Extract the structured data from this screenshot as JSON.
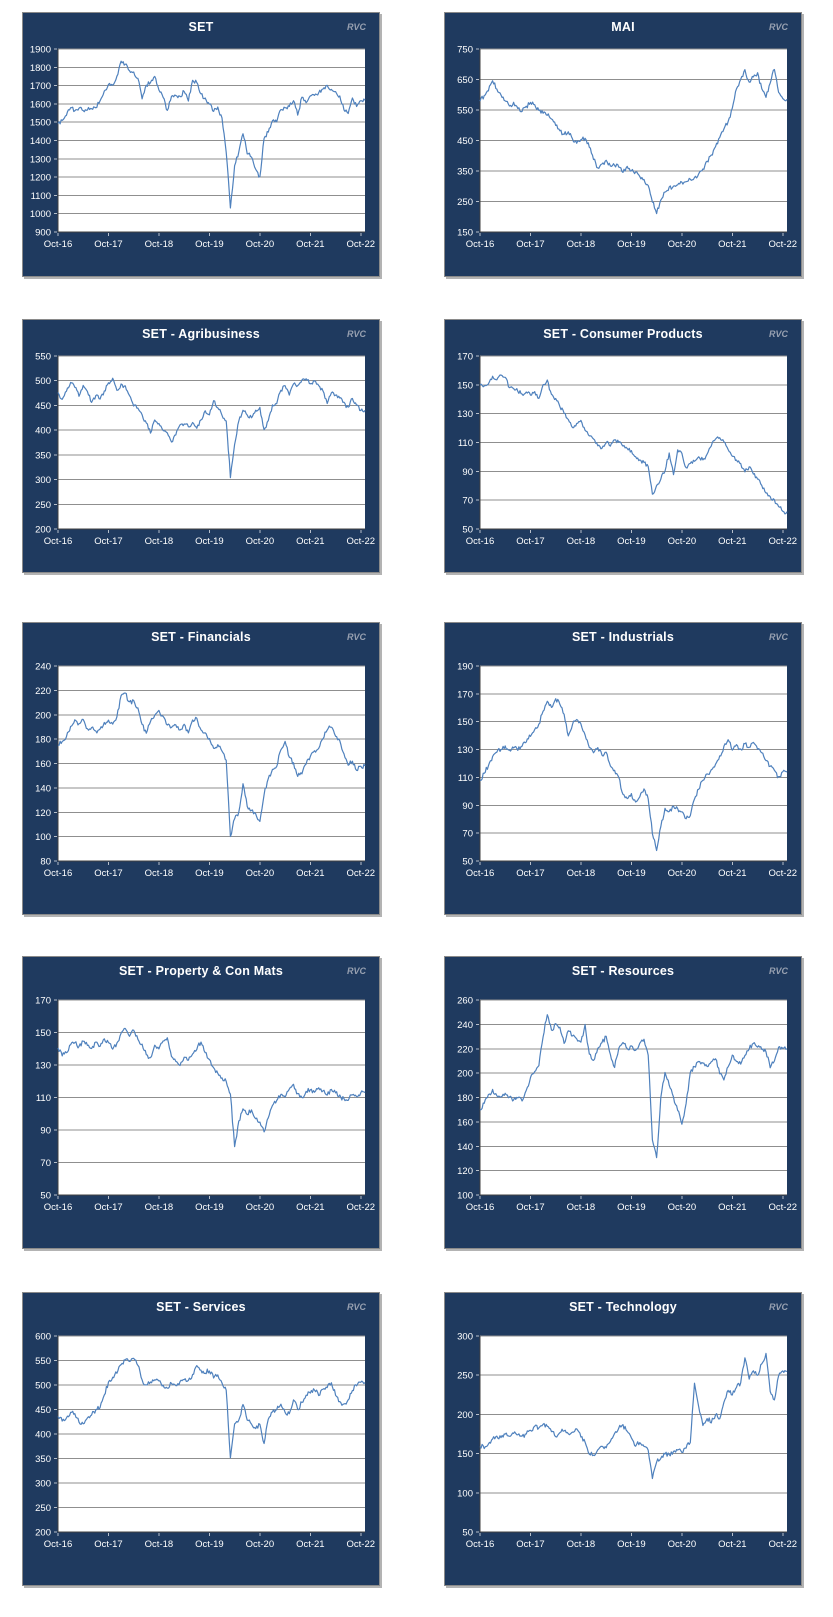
{
  "watermark": "RVC",
  "x_tick_labels": [
    "Oct-16",
    "Oct-17",
    "Oct-18",
    "Oct-19",
    "Oct-20",
    "Oct-21",
    "Oct-22"
  ],
  "colors": {
    "panel_bg": "#1f3a5f",
    "plot_bg": "#ffffff",
    "line": "#4f81bd",
    "grid": "#8f8f8f",
    "axis": "#404040",
    "tick": "#b7bfca",
    "text": "#ffffff",
    "watermark": "#97a0b0"
  },
  "chart_data": [
    {
      "type": "line",
      "title": "SET",
      "frequency": "monthly",
      "x_start": "Oct-16",
      "x_end": "Oct-22",
      "ylim": [
        900,
        1900
      ],
      "ystep": 100,
      "values": [
        1490,
        1510,
        1540,
        1580,
        1565,
        1575,
        1565,
        1570,
        1575,
        1578,
        1615,
        1670,
        1710,
        1700,
        1750,
        1830,
        1820,
        1780,
        1770,
        1740,
        1625,
        1700,
        1720,
        1750,
        1680,
        1640,
        1560,
        1640,
        1650,
        1640,
        1670,
        1620,
        1730,
        1720,
        1655,
        1630,
        1600,
        1560,
        1580,
        1520,
        1340,
        1030,
        1260,
        1340,
        1440,
        1330,
        1310,
        1240,
        1200,
        1410,
        1450,
        1510,
        1500,
        1570,
        1580,
        1590,
        1620,
        1540,
        1640,
        1610,
        1640,
        1650,
        1660,
        1680,
        1700,
        1680,
        1670,
        1640,
        1570,
        1550,
        1630,
        1590,
        1620
      ]
    },
    {
      "type": "line",
      "title": "MAI",
      "frequency": "monthly",
      "x_start": "Oct-16",
      "x_end": "Oct-22",
      "ylim": [
        150,
        750
      ],
      "ystep": 100,
      "values": [
        580,
        595,
        615,
        645,
        620,
        600,
        580,
        562,
        575,
        555,
        548,
        560,
        575,
        570,
        548,
        540,
        535,
        520,
        500,
        482,
        470,
        480,
        455,
        440,
        452,
        456,
        430,
        390,
        360,
        372,
        385,
        365,
        370,
        365,
        345,
        365,
        352,
        345,
        330,
        320,
        300,
        250,
        212,
        255,
        280,
        295,
        300,
        305,
        312,
        316,
        322,
        330,
        340,
        355,
        380,
        400,
        430,
        460,
        490,
        510,
        555,
        620,
        650,
        680,
        640,
        660,
        670,
        620,
        590,
        640,
        685,
        610,
        585
      ]
    },
    {
      "type": "line",
      "title": "SET - Agribusiness",
      "frequency": "monthly",
      "x_start": "Oct-16",
      "x_end": "Oct-22",
      "ylim": [
        200,
        550
      ],
      "ystep": 50,
      "values": [
        475,
        462,
        478,
        497,
        488,
        470,
        492,
        480,
        455,
        470,
        463,
        478,
        495,
        505,
        480,
        492,
        488,
        470,
        450,
        445,
        430,
        415,
        395,
        420,
        412,
        400,
        395,
        375,
        390,
        410,
        412,
        408,
        415,
        405,
        420,
        440,
        430,
        460,
        445,
        430,
        420,
        305,
        370,
        420,
        440,
        430,
        425,
        440,
        445,
        400,
        420,
        450,
        455,
        480,
        490,
        470,
        495,
        490,
        500,
        505,
        495,
        500,
        490,
        480,
        455,
        475,
        470,
        465,
        455,
        445,
        465,
        450,
        440
      ]
    },
    {
      "type": "line",
      "title": "SET - Consumer Products",
      "frequency": "monthly",
      "x_start": "Oct-16",
      "x_end": "Oct-22",
      "ylim": [
        50,
        170
      ],
      "ystep": 20,
      "values": [
        150,
        149,
        151,
        156,
        153,
        157,
        155,
        148,
        147,
        146,
        143,
        145,
        143,
        145,
        141,
        150,
        153,
        143,
        140,
        135,
        130,
        126,
        120,
        123,
        125,
        118,
        115,
        112,
        108,
        106,
        110,
        108,
        112,
        110,
        108,
        106,
        104,
        100,
        98,
        96,
        93,
        74,
        80,
        85,
        90,
        103,
        88,
        105,
        103,
        92,
        95,
        97,
        100,
        98,
        102,
        108,
        112,
        113,
        110,
        105,
        100,
        98,
        95,
        90,
        93,
        88,
        85,
        80,
        75,
        72,
        70,
        66,
        62
      ]
    },
    {
      "type": "line",
      "title": "SET - Financials",
      "frequency": "monthly",
      "x_start": "Oct-16",
      "x_end": "Oct-22",
      "ylim": [
        80,
        240
      ],
      "ystep": 20,
      "values": [
        175,
        178,
        182,
        190,
        196,
        192,
        196,
        188,
        190,
        186,
        188,
        193,
        196,
        192,
        198,
        215,
        218,
        210,
        212,
        205,
        192,
        185,
        195,
        200,
        203,
        198,
        192,
        190,
        192,
        188,
        192,
        185,
        195,
        197,
        188,
        185,
        180,
        172,
        175,
        170,
        163,
        100,
        115,
        120,
        143,
        125,
        122,
        118,
        112,
        135,
        148,
        155,
        158,
        172,
        178,
        165,
        160,
        150,
        152,
        160,
        165,
        170,
        172,
        180,
        188,
        190,
        182,
        178,
        168,
        158,
        162,
        155,
        158
      ]
    },
    {
      "type": "line",
      "title": "SET - Industrials",
      "frequency": "monthly",
      "x_start": "Oct-16",
      "x_end": "Oct-22",
      "ylim": [
        50,
        190
      ],
      "ystep": 20,
      "values": [
        108,
        113,
        118,
        125,
        128,
        130,
        132,
        129,
        131,
        130,
        133,
        136,
        140,
        144,
        148,
        158,
        165,
        160,
        166,
        163,
        155,
        140,
        148,
        152,
        148,
        140,
        132,
        128,
        131,
        126,
        128,
        118,
        115,
        110,
        98,
        95,
        98,
        92,
        96,
        102,
        95,
        70,
        58,
        75,
        88,
        85,
        90,
        87,
        85,
        80,
        83,
        95,
        102,
        108,
        112,
        115,
        120,
        125,
        132,
        137,
        130,
        133,
        130,
        134,
        132,
        135,
        130,
        128,
        122,
        118,
        115,
        110,
        114
      ]
    },
    {
      "type": "line",
      "title": "SET - Property & Con Mats",
      "frequency": "monthly",
      "x_start": "Oct-16",
      "x_end": "Oct-22",
      "ylim": [
        50,
        170
      ],
      "ystep": 20,
      "values": [
        140,
        136,
        138,
        142,
        144,
        141,
        145,
        142,
        140,
        144,
        142,
        146,
        144,
        140,
        143,
        150,
        152,
        148,
        151,
        146,
        143,
        136,
        134,
        142,
        140,
        145,
        147,
        135,
        132,
        130,
        135,
        133,
        137,
        140,
        144,
        138,
        133,
        128,
        125,
        122,
        120,
        112,
        80,
        95,
        103,
        100,
        102,
        97,
        95,
        89,
        98,
        105,
        108,
        112,
        110,
        115,
        118,
        112,
        110,
        114,
        115,
        113,
        116,
        114,
        112,
        115,
        113,
        111,
        109,
        108,
        112,
        110,
        113
      ]
    },
    {
      "type": "line",
      "title": "SET - Resources",
      "frequency": "monthly",
      "x_start": "Oct-16",
      "x_end": "Oct-22",
      "ylim": [
        100,
        260
      ],
      "ystep": 20,
      "values": [
        170,
        175,
        182,
        186,
        182,
        180,
        183,
        180,
        178,
        180,
        177,
        186,
        196,
        202,
        206,
        230,
        248,
        235,
        240,
        238,
        225,
        235,
        230,
        228,
        225,
        240,
        215,
        210,
        220,
        225,
        230,
        215,
        205,
        220,
        225,
        220,
        222,
        218,
        225,
        228,
        215,
        145,
        130,
        180,
        200,
        190,
        180,
        170,
        158,
        175,
        200,
        205,
        210,
        208,
        205,
        210,
        212,
        200,
        195,
        205,
        215,
        210,
        208,
        215,
        220,
        225,
        222,
        220,
        218,
        205,
        210,
        222,
        220
      ]
    },
    {
      "type": "line",
      "title": "SET - Services",
      "frequency": "monthly",
      "x_start": "Oct-16",
      "x_end": "Oct-22",
      "ylim": [
        200,
        600
      ],
      "ystep": 50,
      "values": [
        435,
        428,
        432,
        445,
        440,
        425,
        422,
        432,
        440,
        448,
        455,
        480,
        505,
        515,
        525,
        540,
        550,
        548,
        553,
        540,
        510,
        500,
        505,
        512,
        508,
        500,
        495,
        505,
        500,
        505,
        510,
        508,
        520,
        540,
        530,
        525,
        530,
        515,
        520,
        505,
        490,
        350,
        420,
        430,
        460,
        430,
        420,
        410,
        420,
        380,
        430,
        445,
        450,
        460,
        445,
        440,
        470,
        450,
        465,
        480,
        485,
        490,
        480,
        490,
        495,
        505,
        480,
        465,
        460,
        470,
        490,
        500,
        505
      ]
    },
    {
      "type": "line",
      "title": "SET - Technology",
      "frequency": "monthly",
      "x_start": "Oct-16",
      "x_end": "Oct-22",
      "ylim": [
        50,
        300
      ],
      "ystep": 50,
      "values": [
        160,
        157,
        162,
        168,
        172,
        170,
        174,
        172,
        176,
        174,
        172,
        176,
        180,
        185,
        182,
        188,
        184,
        178,
        172,
        176,
        180,
        176,
        178,
        182,
        172,
        165,
        150,
        148,
        155,
        160,
        158,
        165,
        175,
        183,
        186,
        178,
        170,
        160,
        165,
        160,
        155,
        118,
        140,
        145,
        150,
        148,
        152,
        155,
        152,
        158,
        165,
        240,
        210,
        185,
        195,
        190,
        200,
        195,
        215,
        230,
        225,
        235,
        240,
        272,
        245,
        255,
        250,
        265,
        277,
        230,
        218,
        250,
        255
      ]
    }
  ]
}
